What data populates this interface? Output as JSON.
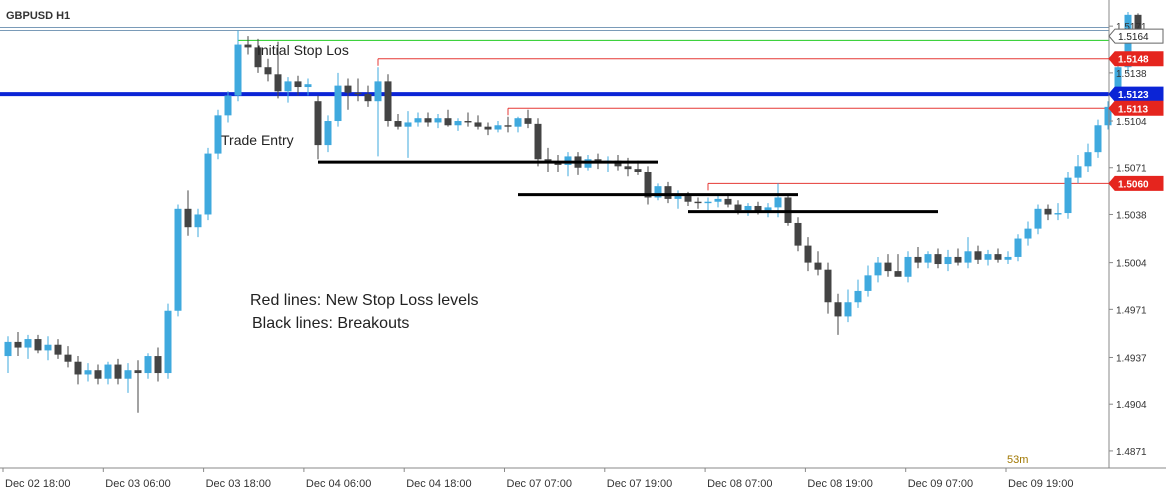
{
  "symbol": "GBPUSD H1",
  "countdown": "53m",
  "annotations": {
    "initial_stop": "Initial Stop Los",
    "trade_entry": "Trade Entry",
    "legend_red": "Red lines: New Stop Loss levels",
    "legend_black": "Black lines: Breakouts"
  },
  "colors": {
    "bull": "#3fa9de",
    "bear": "#444444",
    "entry_line": "#0b24d6",
    "stop_line": "#e53935",
    "green_line": "#22cc22",
    "breakout_line": "#000000",
    "axis_text": "#333333"
  },
  "chart_data": {
    "type": "candlestick",
    "title": "GBPUSD H1",
    "y_axis_ticks": [
      "1.5171",
      "1.5138",
      "1.5104",
      "1.5071",
      "1.5038",
      "1.5004",
      "1.4971",
      "1.4937",
      "1.4904",
      "1.4871"
    ],
    "x_axis_ticks": [
      "Dec 02 18:00",
      "Dec 03 06:00",
      "Dec 03 18:00",
      "Dec 04 06:00",
      "Dec 04 18:00",
      "Dec 07 07:00",
      "Dec 07 19:00",
      "Dec 08 07:00",
      "Dec 08 19:00",
      "Dec 09 07:00",
      "Dec 09 19:00"
    ],
    "ylim": [
      1.4866,
      1.5181
    ],
    "price_tags": [
      {
        "label": "1.5164",
        "value": 1.5164,
        "kind": "current"
      },
      {
        "label": "1.5148",
        "value": 1.5148,
        "kind": "stop"
      },
      {
        "label": "1.5123",
        "value": 1.5123,
        "kind": "entry"
      },
      {
        "label": "1.5113",
        "value": 1.5113,
        "kind": "stop"
      },
      {
        "label": "1.5060",
        "value": 1.506,
        "kind": "stop"
      }
    ],
    "levels": {
      "entry": 1.5123,
      "initial_stop": 1.5169,
      "green": 1.5161,
      "stops": [
        {
          "value": 1.5148,
          "from_index": 37
        },
        {
          "value": 1.5113,
          "from_index": 50
        },
        {
          "value": 1.506,
          "from_index": 70
        }
      ],
      "breakouts": [
        {
          "value": 1.5075,
          "from_index": 31,
          "to_index": 65
        },
        {
          "value": 1.5052,
          "from_index": 51,
          "to_index": 79
        },
        {
          "value": 1.504,
          "from_index": 68,
          "to_index": 93
        }
      ]
    },
    "candles": [
      [
        1.4938,
        1.4952,
        1.4926,
        1.4948
      ],
      [
        1.4948,
        1.4955,
        1.4938,
        1.4944
      ],
      [
        1.4944,
        1.4953,
        1.4936,
        1.495
      ],
      [
        1.495,
        1.4953,
        1.494,
        1.4942
      ],
      [
        1.4942,
        1.4952,
        1.4935,
        1.4946
      ],
      [
        1.4946,
        1.495,
        1.4936,
        1.4939
      ],
      [
        1.4939,
        1.4945,
        1.493,
        1.4934
      ],
      [
        1.4934,
        1.4938,
        1.4918,
        1.4925
      ],
      [
        1.4925,
        1.4933,
        1.492,
        1.4928
      ],
      [
        1.4928,
        1.4932,
        1.4918,
        1.4922
      ],
      [
        1.4922,
        1.4934,
        1.4918,
        1.4932
      ],
      [
        1.4932,
        1.4936,
        1.4918,
        1.4922
      ],
      [
        1.4922,
        1.4933,
        1.4912,
        1.4928
      ],
      [
        1.4928,
        1.4935,
        1.4898,
        1.4926
      ],
      [
        1.4926,
        1.494,
        1.4922,
        1.4938
      ],
      [
        1.4938,
        1.4944,
        1.492,
        1.4926
      ],
      [
        1.4926,
        1.4975,
        1.4922,
        1.497
      ],
      [
        1.497,
        1.5045,
        1.4966,
        1.5042
      ],
      [
        1.5042,
        1.5055,
        1.5023,
        1.5029
      ],
      [
        1.5029,
        1.5042,
        1.5022,
        1.5038
      ],
      [
        1.5038,
        1.5085,
        1.5034,
        1.5081
      ],
      [
        1.5081,
        1.5112,
        1.5077,
        1.5108
      ],
      [
        1.5108,
        1.5125,
        1.5103,
        1.5122
      ],
      [
        1.5122,
        1.5168,
        1.5118,
        1.5158
      ],
      [
        1.5158,
        1.5164,
        1.5151,
        1.5156
      ],
      [
        1.5156,
        1.5162,
        1.5138,
        1.5142
      ],
      [
        1.5142,
        1.5148,
        1.5132,
        1.5137
      ],
      [
        1.5137,
        1.516,
        1.512,
        1.5125
      ],
      [
        1.5125,
        1.5135,
        1.5117,
        1.5132
      ],
      [
        1.5132,
        1.5136,
        1.5122,
        1.5128
      ],
      [
        1.5128,
        1.5134,
        1.5122,
        1.513
      ],
      [
        1.5118,
        1.5122,
        1.5077,
        1.5087
      ],
      [
        1.5087,
        1.5108,
        1.5082,
        1.5104
      ],
      [
        1.5104,
        1.5138,
        1.51,
        1.5129
      ],
      [
        1.5129,
        1.5134,
        1.5112,
        1.5124
      ],
      [
        1.5124,
        1.5134,
        1.5118,
        1.5123
      ],
      [
        1.5123,
        1.5129,
        1.5114,
        1.5118
      ],
      [
        1.5118,
        1.5142,
        1.5079,
        1.5132
      ],
      [
        1.5132,
        1.5137,
        1.51,
        1.5104
      ],
      [
        1.5104,
        1.5109,
        1.5098,
        1.51
      ],
      [
        1.51,
        1.5111,
        1.5078,
        1.5103
      ],
      [
        1.5103,
        1.511,
        1.51,
        1.5106
      ],
      [
        1.5106,
        1.511,
        1.51,
        1.5103
      ],
      [
        1.5103,
        1.5109,
        1.5099,
        1.5106
      ],
      [
        1.5106,
        1.5112,
        1.51,
        1.5101
      ],
      [
        1.5101,
        1.5106,
        1.5097,
        1.5104
      ],
      [
        1.5104,
        1.511,
        1.51,
        1.5103
      ],
      [
        1.5103,
        1.5108,
        1.5098,
        1.51
      ],
      [
        1.51,
        1.5103,
        1.5094,
        1.5098
      ],
      [
        1.5098,
        1.5104,
        1.5096,
        1.5101
      ],
      [
        1.5101,
        1.5107,
        1.5096,
        1.51
      ],
      [
        1.51,
        1.5107,
        1.5096,
        1.5106
      ],
      [
        1.5106,
        1.5112,
        1.5099,
        1.5102
      ],
      [
        1.5102,
        1.5106,
        1.5072,
        1.5077
      ],
      [
        1.5077,
        1.5085,
        1.5068,
        1.5074
      ],
      [
        1.5074,
        1.508,
        1.5068,
        1.5073
      ],
      [
        1.5073,
        1.5082,
        1.5065,
        1.5079
      ],
      [
        1.5079,
        1.5082,
        1.5066,
        1.5071
      ],
      [
        1.5071,
        1.508,
        1.5069,
        1.5077
      ],
      [
        1.5077,
        1.5081,
        1.507,
        1.5074
      ],
      [
        1.5074,
        1.5079,
        1.5068,
        1.5076
      ],
      [
        1.5076,
        1.508,
        1.5069,
        1.5072
      ],
      [
        1.5072,
        1.5078,
        1.5065,
        1.507
      ],
      [
        1.507,
        1.5076,
        1.5066,
        1.5068
      ],
      [
        1.5068,
        1.5072,
        1.5045,
        1.505
      ],
      [
        1.505,
        1.506,
        1.5048,
        1.5058
      ],
      [
        1.5058,
        1.5061,
        1.5046,
        1.5049
      ],
      [
        1.5049,
        1.5055,
        1.5042,
        1.5051
      ],
      [
        1.5051,
        1.5054,
        1.5044,
        1.5047
      ],
      [
        1.5047,
        1.505,
        1.5042,
        1.5046
      ],
      [
        1.5046,
        1.505,
        1.5041,
        1.5047
      ],
      [
        1.5047,
        1.5052,
        1.5043,
        1.5049
      ],
      [
        1.5049,
        1.5053,
        1.5043,
        1.5045
      ],
      [
        1.5045,
        1.5048,
        1.5038,
        1.5041
      ],
      [
        1.5041,
        1.5046,
        1.5037,
        1.5044
      ],
      [
        1.5044,
        1.5047,
        1.5038,
        1.504
      ],
      [
        1.504,
        1.5046,
        1.5036,
        1.5043
      ],
      [
        1.5043,
        1.506,
        1.5036,
        1.505
      ],
      [
        1.505,
        1.5052,
        1.503,
        1.5032
      ],
      [
        1.5032,
        1.5036,
        1.5012,
        1.5016
      ],
      [
        1.5016,
        1.5022,
        1.4998,
        1.5004
      ],
      [
        1.5004,
        1.5012,
        1.4995,
        1.4999
      ],
      [
        1.4999,
        1.5004,
        1.4968,
        1.4976
      ],
      [
        1.4976,
        1.4982,
        1.4953,
        1.4966
      ],
      [
        1.4966,
        1.4985,
        1.4962,
        1.4976
      ],
      [
        1.4976,
        1.4992,
        1.4972,
        1.4984
      ],
      [
        1.4984,
        1.5002,
        1.498,
        1.4995
      ],
      [
        1.4995,
        1.5008,
        1.499,
        1.5004
      ],
      [
        1.5004,
        1.501,
        1.4994,
        1.4998
      ],
      [
        1.4998,
        1.501,
        1.4996,
        1.4994
      ],
      [
        1.4994,
        1.5012,
        1.499,
        1.5008
      ],
      [
        1.5008,
        1.5015,
        1.5,
        1.5004
      ],
      [
        1.5004,
        1.5012,
        1.5,
        1.501
      ],
      [
        1.501,
        1.5014,
        1.5,
        1.5003
      ],
      [
        1.5003,
        1.5013,
        1.4998,
        1.5008
      ],
      [
        1.5008,
        1.5014,
        1.5002,
        1.5004
      ],
      [
        1.5004,
        1.5022,
        1.5,
        1.5012
      ],
      [
        1.5012,
        1.5016,
        1.5003,
        1.5006
      ],
      [
        1.5006,
        1.5013,
        1.5002,
        1.501
      ],
      [
        1.501,
        1.5014,
        1.5004,
        1.5006
      ],
      [
        1.5006,
        1.5012,
        1.5003,
        1.5008
      ],
      [
        1.5008,
        1.5024,
        1.5005,
        1.5021
      ],
      [
        1.5021,
        1.5033,
        1.5016,
        1.5028
      ],
      [
        1.5028,
        1.5045,
        1.5024,
        1.5042
      ],
      [
        1.5042,
        1.5045,
        1.5034,
        1.5038
      ],
      [
        1.5038,
        1.5046,
        1.5034,
        1.5039
      ],
      [
        1.5039,
        1.5068,
        1.5035,
        1.5064
      ],
      [
        1.5064,
        1.508,
        1.506,
        1.5072
      ],
      [
        1.5072,
        1.5088,
        1.5068,
        1.5082
      ],
      [
        1.5082,
        1.5105,
        1.5078,
        1.5101
      ],
      [
        1.5101,
        1.5118,
        1.5098,
        1.5114
      ],
      [
        1.5114,
        1.5145,
        1.511,
        1.5142
      ],
      [
        1.5142,
        1.5181,
        1.5138,
        1.5179
      ],
      [
        1.5179,
        1.518,
        1.5162,
        1.5166
      ],
      [
        1.5166,
        1.5166,
        1.5163,
        1.5164
      ]
    ]
  }
}
